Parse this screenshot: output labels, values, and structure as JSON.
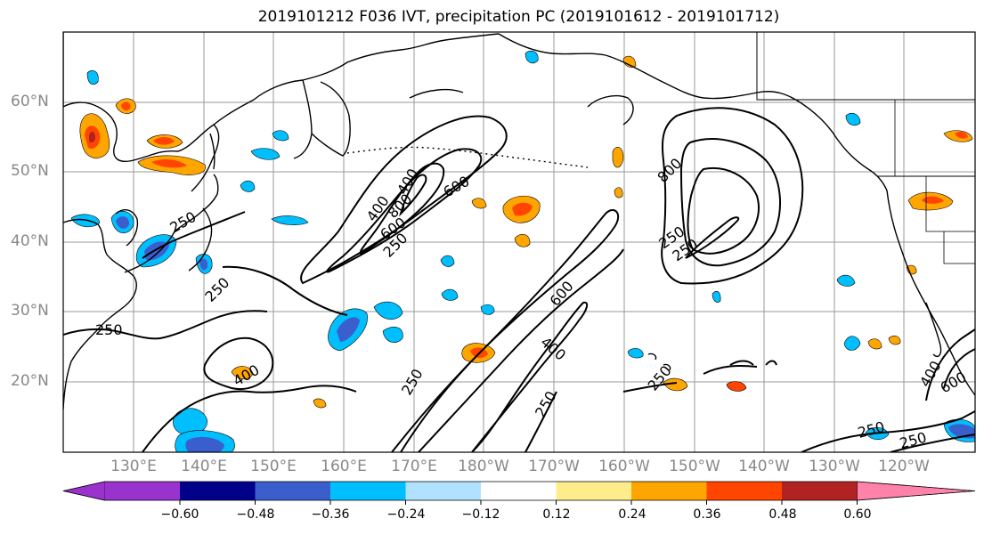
{
  "title": "2019101212 F036 IVT, precipitation PC (2019101612 - 2019101712)",
  "lat_labels": [
    "60°N",
    "50°N",
    "40°N",
    "30°N",
    "20°N"
  ],
  "lon_labels": [
    "130°E",
    "140°E",
    "150°E",
    "160°E",
    "170°E",
    "180°W",
    "170°W",
    "160°W",
    "150°W",
    "140°W",
    "130°W",
    "120°W"
  ],
  "colorbar": {
    "tick_labels": [
      "−0.60",
      "−0.48",
      "−0.36",
      "−0.24",
      "−0.12",
      "0.12",
      "0.24",
      "0.36",
      "0.48",
      "0.60"
    ],
    "colors": [
      "#9a32cd",
      "#00008b",
      "#3a5fcd",
      "#00bfff",
      "#b0e2ff",
      "#ffffff",
      "#ffec8b",
      "#ffa500",
      "#ff4500",
      "#b22222",
      "#ff82ab"
    ]
  },
  "contour_labels": [
    "250",
    "400",
    "600",
    "800",
    "250",
    "400",
    "600",
    "800",
    "250",
    "250",
    "250",
    "400",
    "250",
    "250",
    "250",
    "400",
    "600",
    "250",
    "250"
  ]
}
